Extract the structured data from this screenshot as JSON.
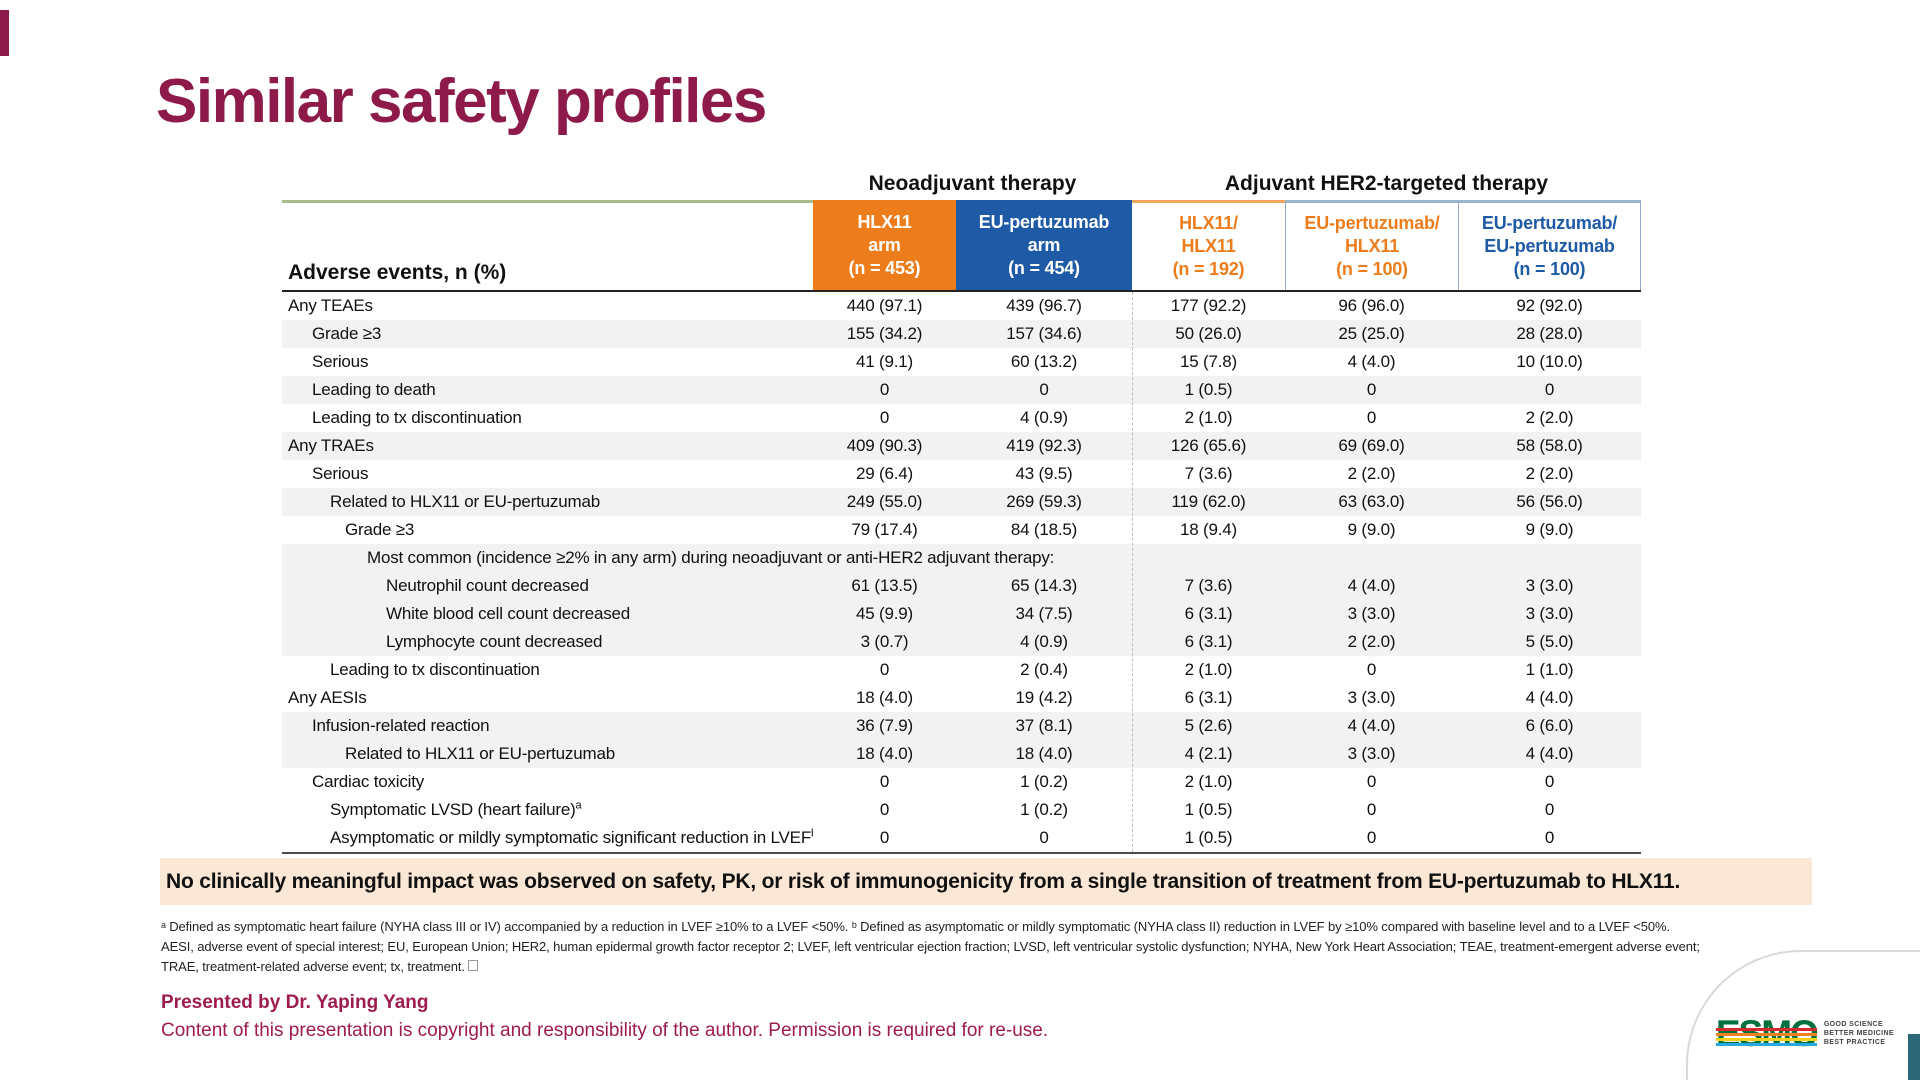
{
  "title": "Similar safety profiles",
  "table": {
    "group_headers": [
      {
        "label": "Neoadjuvant therapy"
      },
      {
        "label": "Adjuvant HER2-targeted therapy"
      }
    ],
    "row_header_label": "Adverse events, n (%)",
    "columns": [
      {
        "lines": [
          "HLX11",
          "arm",
          "(n = 453)"
        ],
        "style": "orange-solid"
      },
      {
        "lines": [
          "EU-pertuzumab",
          "arm",
          "(n = 454)"
        ],
        "style": "blue-solid"
      },
      {
        "lines": [
          "HLX11/",
          "HLX11",
          "(n = 192)"
        ],
        "style": "orange-text"
      },
      {
        "lines": [
          "EU-pertuzumab/",
          "HLX11",
          "(n = 100)"
        ],
        "style": "orange-text"
      },
      {
        "lines": [
          "EU-pertuzumab/",
          "EU-pertuzumab",
          "(n = 100)"
        ],
        "style": "blue-text"
      }
    ],
    "rows": [
      {
        "label": "Any TEAEs",
        "level": 0,
        "shaded": false,
        "values": [
          "440 (97.1)",
          "439 (96.7)",
          "177 (92.2)",
          "96 (96.0)",
          "92 (92.0)"
        ]
      },
      {
        "label": "Grade ≥3",
        "level": 1,
        "shaded": true,
        "values": [
          "155 (34.2)",
          "157 (34.6)",
          "50 (26.0)",
          "25 (25.0)",
          "28 (28.0)"
        ]
      },
      {
        "label": "Serious",
        "level": 1,
        "shaded": false,
        "values": [
          "41 (9.1)",
          "60 (13.2)",
          "15 (7.8)",
          "4 (4.0)",
          "10 (10.0)"
        ]
      },
      {
        "label": "Leading to death",
        "level": 1,
        "shaded": true,
        "values": [
          "0",
          "0",
          "1 (0.5)",
          "0",
          "0"
        ]
      },
      {
        "label": "Leading to tx discontinuation",
        "level": 1,
        "shaded": false,
        "values": [
          "0",
          "4 (0.9)",
          "2 (1.0)",
          "0",
          "2 (2.0)"
        ]
      },
      {
        "label": "Any TRAEs",
        "level": 0,
        "shaded": true,
        "values": [
          "409 (90.3)",
          "419 (92.3)",
          "126 (65.6)",
          "69 (69.0)",
          "58 (58.0)"
        ]
      },
      {
        "label": "Serious",
        "level": 1,
        "shaded": false,
        "values": [
          "29 (6.4)",
          "43 (9.5)",
          "7 (3.6)",
          "2 (2.0)",
          "2 (2.0)"
        ]
      },
      {
        "label": "Related to HLX11 or EU-pertuzumab",
        "level": 2,
        "shaded": true,
        "values": [
          "249 (55.0)",
          "269 (59.3)",
          "119 (62.0)",
          "63 (63.0)",
          "56 (56.0)"
        ]
      },
      {
        "label": "Grade ≥3",
        "level": 3,
        "shaded": false,
        "values": [
          "79 (17.4)",
          "84 (18.5)",
          "18 (9.4)",
          "9 (9.0)",
          "9 (9.0)"
        ]
      },
      {
        "label": "Most common (incidence ≥2% in any arm) during neoadjuvant or anti-HER2 adjuvant therapy:",
        "level": 4,
        "shaded": true,
        "span": true,
        "values": []
      },
      {
        "label": "Neutrophil count decreased",
        "level": 5,
        "shaded": true,
        "values": [
          "61 (13.5)",
          "65 (14.3)",
          "7 (3.6)",
          "4 (4.0)",
          "3 (3.0)"
        ]
      },
      {
        "label": "White blood cell count decreased",
        "level": 5,
        "shaded": true,
        "values": [
          "45 (9.9)",
          "34 (7.5)",
          "6 (3.1)",
          "3 (3.0)",
          "3 (3.0)"
        ]
      },
      {
        "label": "Lymphocyte count decreased",
        "level": 5,
        "shaded": true,
        "values": [
          "3 (0.7)",
          "4 (0.9)",
          "6 (3.1)",
          "2 (2.0)",
          "5 (5.0)"
        ]
      },
      {
        "label": "Leading to tx discontinuation",
        "level": 2,
        "shaded": false,
        "values": [
          "0",
          "2 (0.4)",
          "2 (1.0)",
          "0",
          "1 (1.0)"
        ]
      },
      {
        "label": "Any AESIs",
        "level": 0,
        "shaded": false,
        "values": [
          "18 (4.0)",
          "19 (4.2)",
          "6 (3.1)",
          "3 (3.0)",
          "4 (4.0)"
        ]
      },
      {
        "label": "Infusion-related reaction",
        "level": 1,
        "shaded": true,
        "values": [
          "36 (7.9)",
          "37 (8.1)",
          "5 (2.6)",
          "4 (4.0)",
          "6 (6.0)"
        ]
      },
      {
        "label": "Related to HLX11 or EU-pertuzumab",
        "level": 3,
        "shaded": true,
        "values": [
          "18 (4.0)",
          "18 (4.0)",
          "4 (2.1)",
          "3 (3.0)",
          "4 (4.0)"
        ]
      },
      {
        "label": "Cardiac toxicity",
        "level": 1,
        "shaded": false,
        "values": [
          "0",
          "1 (0.2)",
          "2 (1.0)",
          "0",
          "0"
        ]
      },
      {
        "label": "Symptomatic LVSD (heart failure)",
        "sup": "a",
        "level": 2,
        "shaded": false,
        "values": [
          "0",
          "1 (0.2)",
          "1 (0.5)",
          "0",
          "0"
        ]
      },
      {
        "label": "Asymptomatic or mildly symptomatic significant reduction in LVEF",
        "sup": "b",
        "level": 2,
        "shaded": false,
        "values": [
          "0",
          "0",
          "1 (0.5)",
          "0",
          "0"
        ]
      }
    ]
  },
  "banner": "No clinically meaningful impact was observed on safety, PK, or risk of immunogenicity from a single transition of treatment from EU-pertuzumab to HLX11.",
  "footnotes": [
    "ᵃ Defined as symptomatic heart failure (NYHA class III or IV) accompanied by a reduction in LVEF ≥10% to a LVEF <50%. ᵇ Defined as asymptomatic or mildly symptomatic (NYHA class II) reduction in LVEF by ≥10% compared with baseline level and to a LVEF <50%.",
    "AESI, adverse event of special interest; EU, European Union; HER2, human epidermal growth factor receptor 2; LVEF, left ventricular ejection fraction; LVSD, left ventricular systolic dysfunction; NYHA, New York Heart Association; TEAE, treatment-emergent adverse event;",
    "TRAE, treatment-related adverse event; tx, treatment."
  ],
  "presented_by": "Presented by Dr. Yaping Yang",
  "copyright": "Content of this presentation is copyright and responsibility of the author. Permission is required for re-use.",
  "logo": {
    "wordmark": "ESMO",
    "taglines": [
      "GOOD SCIENCE",
      "BETTER MEDICINE",
      "BEST PRACTICE"
    ]
  },
  "colors": {
    "accent_maroon": "#8E1A4A",
    "footer_maroon": "#9E1B50",
    "orange": "#ED7D1B",
    "blue": "#1E5AA5",
    "banner_bg": "#FBE7D5",
    "row_stripe": "#F2F2F2",
    "green_rule": "#A9BC8F",
    "blue_rule": "#9DB6CF",
    "teal_corner": "#2B6777",
    "esmo_green": "#00703C"
  }
}
